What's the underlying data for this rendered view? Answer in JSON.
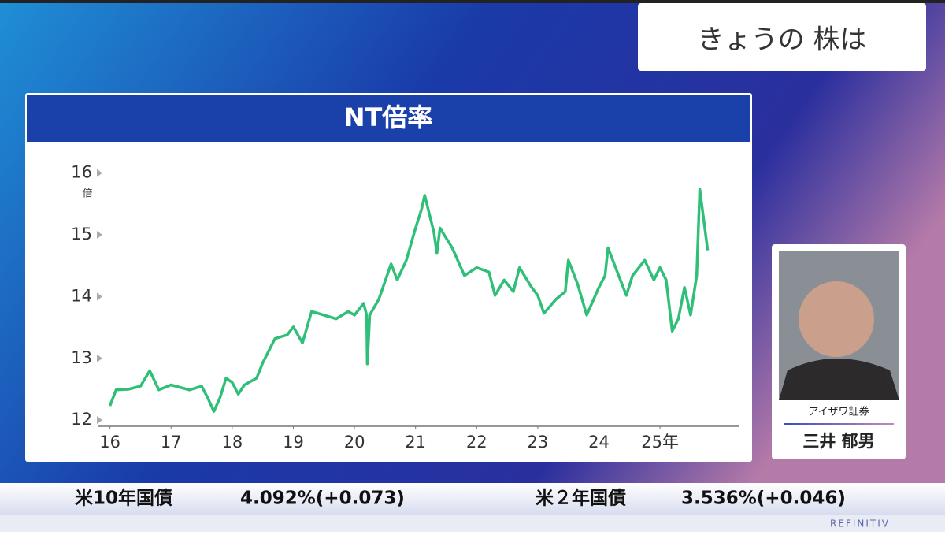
{
  "header": {
    "title": "きょうの 株は"
  },
  "chart_data": {
    "type": "line",
    "title": "NT倍率",
    "y_unit": "倍",
    "x": [
      16.0,
      16.1,
      16.3,
      16.5,
      16.65,
      16.8,
      17.0,
      17.3,
      17.5,
      17.6,
      17.7,
      17.8,
      17.9,
      18.0,
      18.1,
      18.2,
      18.4,
      18.5,
      18.7,
      18.9,
      19.0,
      19.15,
      19.3,
      19.5,
      19.7,
      19.9,
      20.0,
      20.15,
      20.2,
      20.21,
      20.25,
      20.4,
      20.6,
      20.7,
      20.85,
      21.0,
      21.1,
      21.15,
      21.3,
      21.35,
      21.4,
      21.6,
      21.8,
      22.0,
      22.2,
      22.3,
      22.45,
      22.6,
      22.7,
      22.9,
      23.0,
      23.1,
      23.3,
      23.45,
      23.5,
      23.65,
      23.8,
      24.0,
      24.1,
      24.15,
      24.3,
      24.45,
      24.55,
      24.75,
      24.9,
      25.0,
      25.1,
      25.2,
      25.3,
      25.4,
      25.5,
      25.6,
      25.65,
      25.75,
      25.78
    ],
    "series": [
      {
        "color": "#2fbf79",
        "values": [
          12.23,
          12.49,
          12.5,
          12.55,
          12.8,
          12.49,
          12.57,
          12.49,
          12.55,
          12.36,
          12.14,
          12.36,
          12.68,
          12.61,
          12.42,
          12.57,
          12.68,
          12.93,
          13.32,
          13.38,
          13.51,
          13.25,
          13.76,
          13.7,
          13.64,
          13.76,
          13.7,
          13.89,
          13.7,
          12.91,
          13.7,
          13.96,
          14.53,
          14.27,
          14.59,
          15.11,
          15.42,
          15.64,
          15.04,
          14.7,
          15.11,
          14.79,
          14.34,
          14.47,
          14.4,
          14.02,
          14.27,
          14.08,
          14.47,
          14.15,
          14.02,
          13.73,
          13.96,
          14.08,
          14.59,
          14.21,
          13.7,
          14.15,
          14.34,
          14.79,
          14.4,
          14.02,
          14.34,
          14.59,
          14.27,
          14.47,
          14.27,
          13.44,
          13.64,
          14.15,
          13.7,
          14.34,
          15.74,
          14.98,
          14.75
        ]
      }
    ],
    "xlim": [
      15.85,
      26.3
    ],
    "xticks": [
      16,
      17,
      18,
      19,
      20,
      21,
      22,
      23,
      24,
      {
        "value": 25,
        "label": "25年"
      }
    ],
    "ylim": [
      11.9,
      16.2
    ],
    "yticks": [
      12,
      13,
      14,
      15,
      16
    ]
  },
  "guest": {
    "company": "アイザワ証券",
    "name": "三井 郁男"
  },
  "ticker": {
    "items": [
      {
        "label": "米10年国債",
        "value": "4.092%(+0.073)"
      },
      {
        "label": "米２年国債",
        "value": "3.536%(+0.046)"
      }
    ]
  },
  "footer": {
    "brand": "REFINITIV"
  }
}
